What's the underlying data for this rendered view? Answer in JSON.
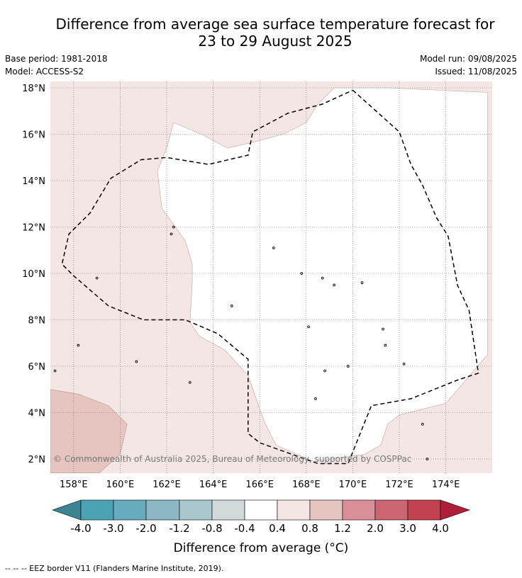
{
  "title_line1": "Difference from average sea surface temperature forecast for",
  "title_line2": "23 to 29 August 2025",
  "meta": {
    "base_period": "Base period: 1981-2018",
    "model": "Model: ACCESS-S2",
    "model_run": "Model run: 09/08/2025",
    "issued": "Issued: 11/08/2025"
  },
  "map": {
    "lon_range": [
      157,
      175.8
    ],
    "lat_range": [
      1.4,
      18.3
    ],
    "lon_ticks": [
      158,
      160,
      162,
      164,
      166,
      168,
      170,
      172,
      174
    ],
    "lat_ticks": [
      2,
      4,
      6,
      8,
      10,
      12,
      14,
      16,
      18
    ],
    "lon_tick_labels": [
      "158°E",
      "160°E",
      "162°E",
      "164°E",
      "166°E",
      "168°E",
      "170°E",
      "172°E",
      "174°E"
    ],
    "lat_tick_labels": [
      "2°N",
      "4°N",
      "6°N",
      "8°N",
      "10°N",
      "12°N",
      "14°N",
      "16°N",
      "18°N"
    ],
    "copyright": "© Commonwealth of Australia 2025, Bureau of Meteorology, supported by COSPPac",
    "colors": {
      "band_0_4_0_8": "#f4e6e4",
      "band_0_8_1_2": "#e6c4c0",
      "near_zero": "#ffffff",
      "grid": "#666666",
      "eez": "#000000"
    },
    "eez_border": [
      [
        170.0,
        17.9
      ],
      [
        172.0,
        16.1
      ],
      [
        172.5,
        14.7
      ],
      [
        173.0,
        13.8
      ],
      [
        173.6,
        12.4
      ],
      [
        174.1,
        11.6
      ],
      [
        174.5,
        9.5
      ],
      [
        175.0,
        8.4
      ],
      [
        175.4,
        5.7
      ],
      [
        174.5,
        5.4
      ],
      [
        172.5,
        4.6
      ],
      [
        170.8,
        4.3
      ],
      [
        169.8,
        1.8
      ],
      [
        168.5,
        1.8
      ],
      [
        166.0,
        2.7
      ],
      [
        165.5,
        3.1
      ],
      [
        165.5,
        6.3
      ],
      [
        164.2,
        7.4
      ],
      [
        162.8,
        8.0
      ],
      [
        161.0,
        8.0
      ],
      [
        159.5,
        8.6
      ],
      [
        158.0,
        9.9
      ],
      [
        157.5,
        10.4
      ],
      [
        157.8,
        11.7
      ],
      [
        158.7,
        12.6
      ],
      [
        159.6,
        14.1
      ],
      [
        160.9,
        14.9
      ],
      [
        162.0,
        15.0
      ],
      [
        163.8,
        14.7
      ],
      [
        165.5,
        15.1
      ],
      [
        165.7,
        16.1
      ],
      [
        167.2,
        16.9
      ],
      [
        168.7,
        17.3
      ],
      [
        170.0,
        17.9
      ]
    ],
    "band_0_8_1_2_region": [
      [
        157.0,
        5.0
      ],
      [
        158.2,
        4.8
      ],
      [
        159.5,
        4.3
      ],
      [
        160.3,
        3.5
      ],
      [
        160.0,
        2.2
      ],
      [
        159.1,
        1.4
      ],
      [
        157.0,
        1.4
      ]
    ],
    "near_zero_region": [
      [
        162.3,
        16.5
      ],
      [
        163.5,
        16.0
      ],
      [
        164.6,
        15.4
      ],
      [
        165.5,
        15.6
      ],
      [
        167.0,
        16.0
      ],
      [
        168.0,
        16.5
      ],
      [
        168.5,
        17.3
      ],
      [
        169.2,
        18.0
      ],
      [
        171.5,
        18.0
      ],
      [
        175.8,
        17.8
      ],
      [
        175.8,
        6.5
      ],
      [
        174.0,
        4.4
      ],
      [
        172.0,
        3.9
      ],
      [
        171.5,
        3.5
      ],
      [
        171.2,
        2.6
      ],
      [
        170.5,
        2.2
      ],
      [
        168.3,
        1.9
      ],
      [
        166.7,
        2.6
      ],
      [
        166.2,
        3.6
      ],
      [
        165.5,
        5.6
      ],
      [
        164.5,
        6.7
      ],
      [
        163.4,
        7.3
      ],
      [
        163.0,
        7.9
      ],
      [
        163.1,
        9.6
      ],
      [
        163.1,
        10.4
      ],
      [
        162.8,
        11.4
      ],
      [
        161.8,
        12.8
      ],
      [
        161.6,
        14.4
      ],
      [
        162.0,
        15.4
      ],
      [
        162.3,
        16.5
      ]
    ]
  },
  "colorbar": {
    "colors": [
      "#3b8491",
      "#4aa3b5",
      "#67acbe",
      "#8cb7c4",
      "#a9c7cd",
      "#d1d9da",
      "#ffffff",
      "#f4e6e4",
      "#e6c4c0",
      "#d88f97",
      "#cc6572",
      "#c2434f",
      "#b01f39"
    ],
    "tick_labels": [
      "-4.0",
      "-3.0",
      "-2.0",
      "-1.2",
      "-0.8",
      "-0.4",
      "0.4",
      "0.8",
      "1.2",
      "2.0",
      "3.0",
      "4.0"
    ],
    "label": "Difference from average (°C)"
  },
  "footer": "--  --  -- EEZ border V11 (Flanders Marine Institute, 2019)."
}
